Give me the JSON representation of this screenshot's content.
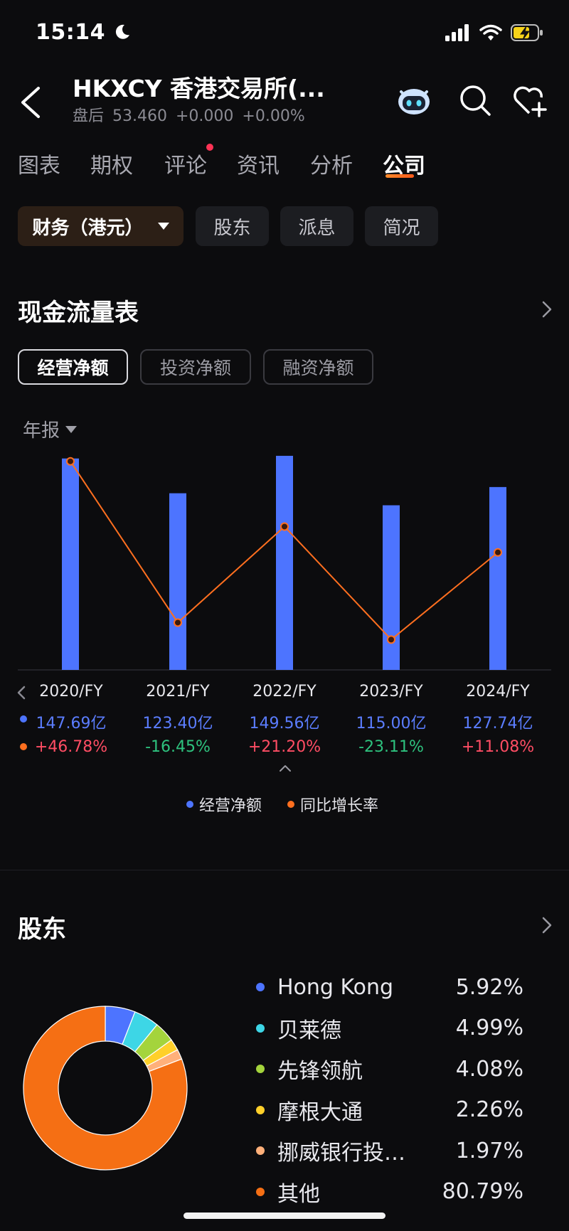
{
  "status_bar": {
    "time": "15:14"
  },
  "header": {
    "title": "HKXCY  香港交易所(...",
    "session": "盘后",
    "price": "53.460",
    "change": "+0.000",
    "change_pct": "+0.00%"
  },
  "tabs": [
    {
      "label": "图表"
    },
    {
      "label": "期权"
    },
    {
      "label": "评论"
    },
    {
      "label": "资讯"
    },
    {
      "label": "分析"
    },
    {
      "label": "公司"
    }
  ],
  "sub_tabs": [
    {
      "label": "财务（港元）"
    },
    {
      "label": "股东"
    },
    {
      "label": "派息"
    },
    {
      "label": "简况"
    }
  ],
  "cashflow": {
    "title": "现金流量表",
    "segments": [
      {
        "label": "经营净额"
      },
      {
        "label": "投资净额"
      },
      {
        "label": "融资净额"
      }
    ],
    "period": "年报"
  },
  "chart_data": {
    "type": "bar",
    "categories": [
      "2020/FY",
      "2021/FY",
      "2022/FY",
      "2023/FY",
      "2024/FY"
    ],
    "series": [
      {
        "name": "经营净额",
        "type": "bar",
        "values": [
          147.69,
          123.4,
          149.56,
          115.0,
          127.74
        ],
        "labels": [
          "147.69亿",
          "123.40亿",
          "149.56亿",
          "115.00亿",
          "127.74亿"
        ],
        "color": "#4d74ff"
      },
      {
        "name": "同比增长率",
        "type": "line",
        "values": [
          46.78,
          -16.45,
          21.2,
          -23.11,
          11.08
        ],
        "labels": [
          "+46.78%",
          "-16.45%",
          "+21.20%",
          "-23.11%",
          "+11.08%"
        ],
        "color": "#ff6f1f"
      }
    ],
    "ylim": [
      0,
      155
    ],
    "y2lim": [
      -35,
      52
    ]
  },
  "shareholders": {
    "title": "股东",
    "items": [
      {
        "name": "Hong Kong",
        "pct": "5.92%",
        "value": 5.92,
        "color": "#4d74ff"
      },
      {
        "name": "贝莱德",
        "pct": "4.99%",
        "value": 4.99,
        "color": "#3dd6e6"
      },
      {
        "name": "先锋领航",
        "pct": "4.08%",
        "value": 4.08,
        "color": "#a4d43c"
      },
      {
        "name": "摩根大通",
        "pct": "2.26%",
        "value": 2.26,
        "color": "#ffd02a"
      },
      {
        "name": "挪威银行投…",
        "pct": "1.97%",
        "value": 1.97,
        "color": "#ffb07a"
      },
      {
        "name": "其他",
        "pct": "80.79%",
        "value": 80.79,
        "color": "#f56f14"
      }
    ]
  }
}
